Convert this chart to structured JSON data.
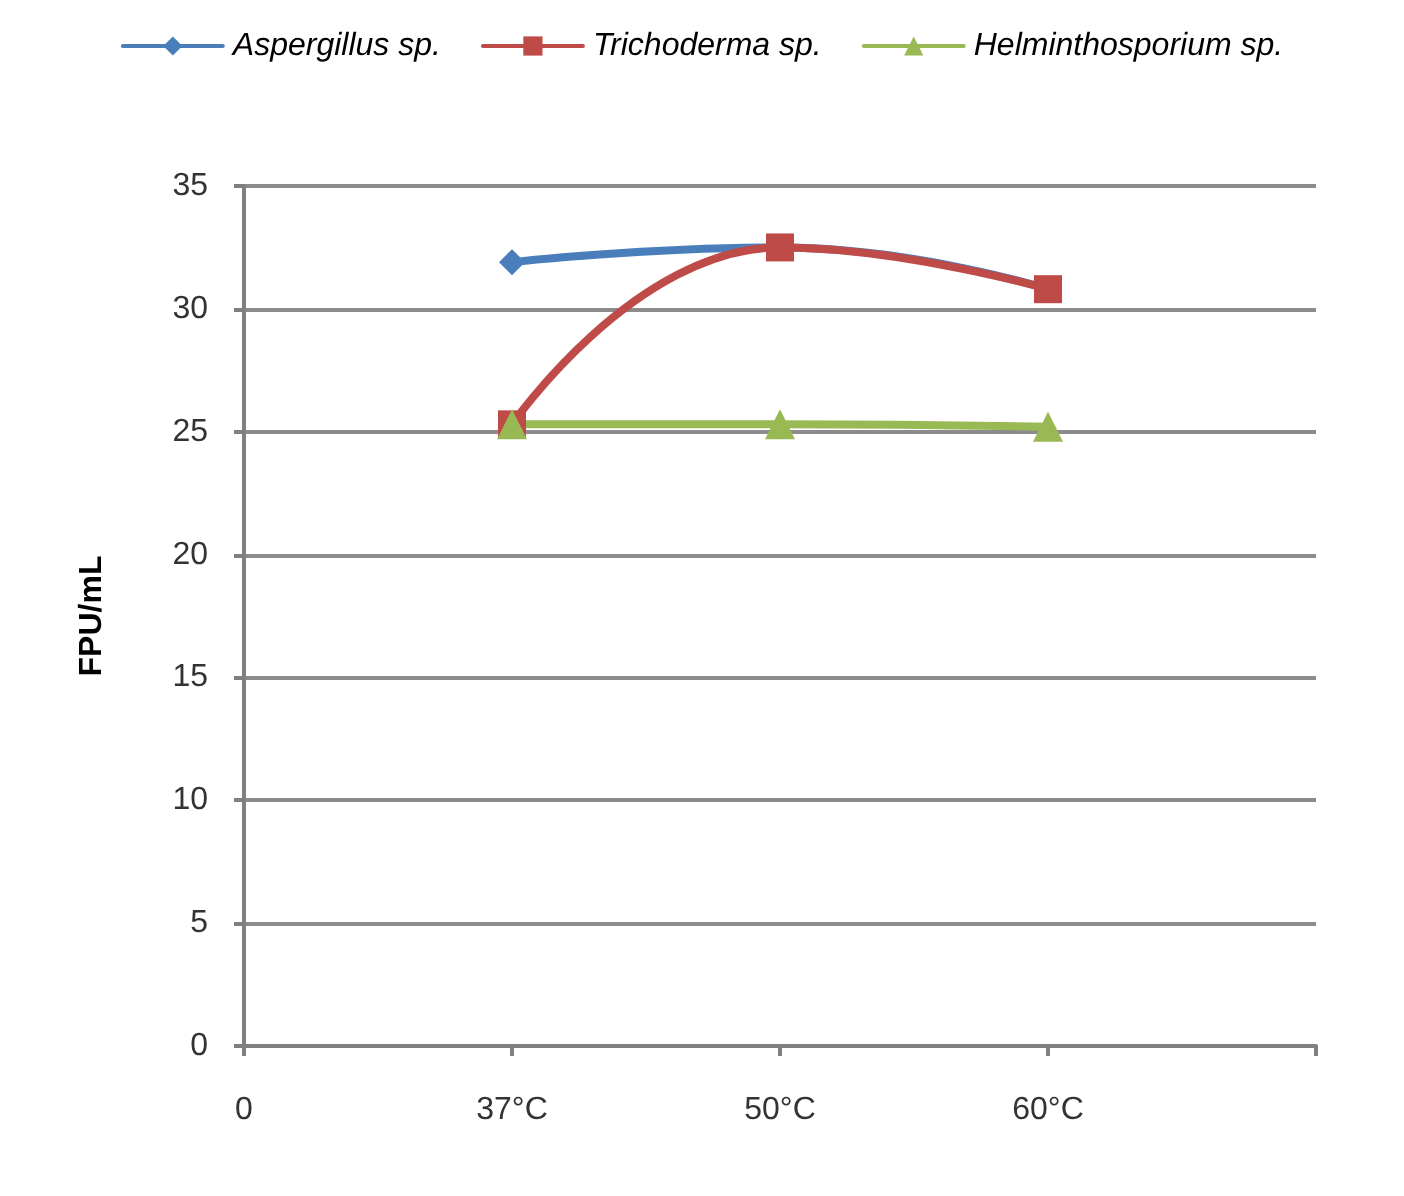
{
  "chart_data": {
    "type": "line",
    "ylabel": "FPU/mL",
    "categories": [
      "0",
      "37°C",
      "50°C",
      "60°C",
      null
    ],
    "series": [
      {
        "name": "Aspergillus sp.",
        "color": "#4a7ebb",
        "marker": "diamond",
        "values": [
          null,
          31.9,
          32.5,
          30.8,
          null
        ]
      },
      {
        "name": "Trichoderma sp.",
        "color": "#be4b48",
        "marker": "square",
        "values": [
          null,
          25.3,
          32.5,
          30.8,
          null
        ]
      },
      {
        "name": "Helminthosporium sp.",
        "color": "#98b954",
        "marker": "triangle",
        "values": [
          null,
          25.3,
          25.3,
          25.2,
          null
        ]
      }
    ],
    "ylim": [
      0,
      35
    ],
    "yticks": [
      0,
      5,
      10,
      15,
      20,
      25,
      30,
      35
    ],
    "grid": "y",
    "legend": "top"
  }
}
